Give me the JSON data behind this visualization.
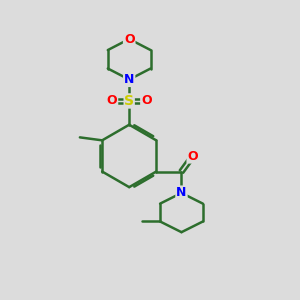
{
  "bg_color": "#dcdcdc",
  "bond_color": "#2d6e2d",
  "atom_colors": {
    "O": "#ff0000",
    "N": "#0000ff",
    "S": "#cccc00",
    "C": "#2d6e2d"
  },
  "figsize": [
    3.0,
    3.0
  ],
  "dpi": 100
}
